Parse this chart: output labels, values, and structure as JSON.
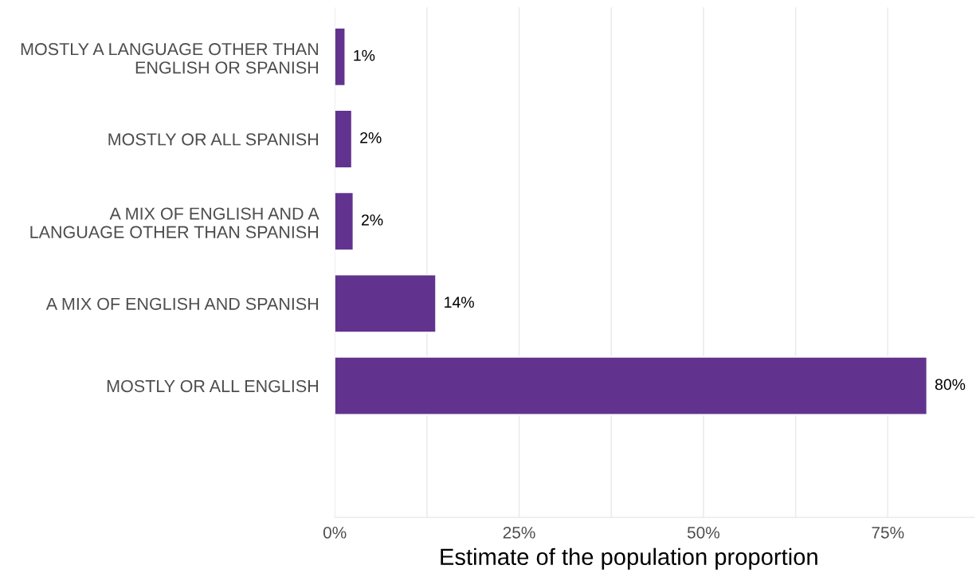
{
  "chart_data": {
    "type": "bar",
    "orientation": "horizontal",
    "xlabel": "Estimate of the population proportion",
    "categories": [
      "MOSTLY A LANGUAGE OTHER THAN\nENGLISH OR SPANISH",
      "MOSTLY OR ALL SPANISH",
      "A MIX OF ENGLISH AND A\nLANGUAGE OTHER THAN SPANISH",
      "A MIX OF ENGLISH AND SPANISH",
      "MOSTLY OR ALL ENGLISH"
    ],
    "values": [
      1.4,
      2.3,
      2.5,
      13.7,
      80.3
    ],
    "value_labels": [
      "1%",
      "2%",
      "2%",
      "14%",
      "80%"
    ],
    "color": "#62338e",
    "xlim": [
      0,
      86.7
    ],
    "xticks": [
      {
        "value": 0,
        "label": "0%"
      },
      {
        "value": 12.5,
        "label": null
      },
      {
        "value": 25,
        "label": "25%"
      },
      {
        "value": 37.5,
        "label": null
      },
      {
        "value": 50,
        "label": "50%"
      },
      {
        "value": 62.5,
        "label": null
      },
      {
        "value": 75,
        "label": "75%"
      }
    ],
    "grid": "x"
  }
}
